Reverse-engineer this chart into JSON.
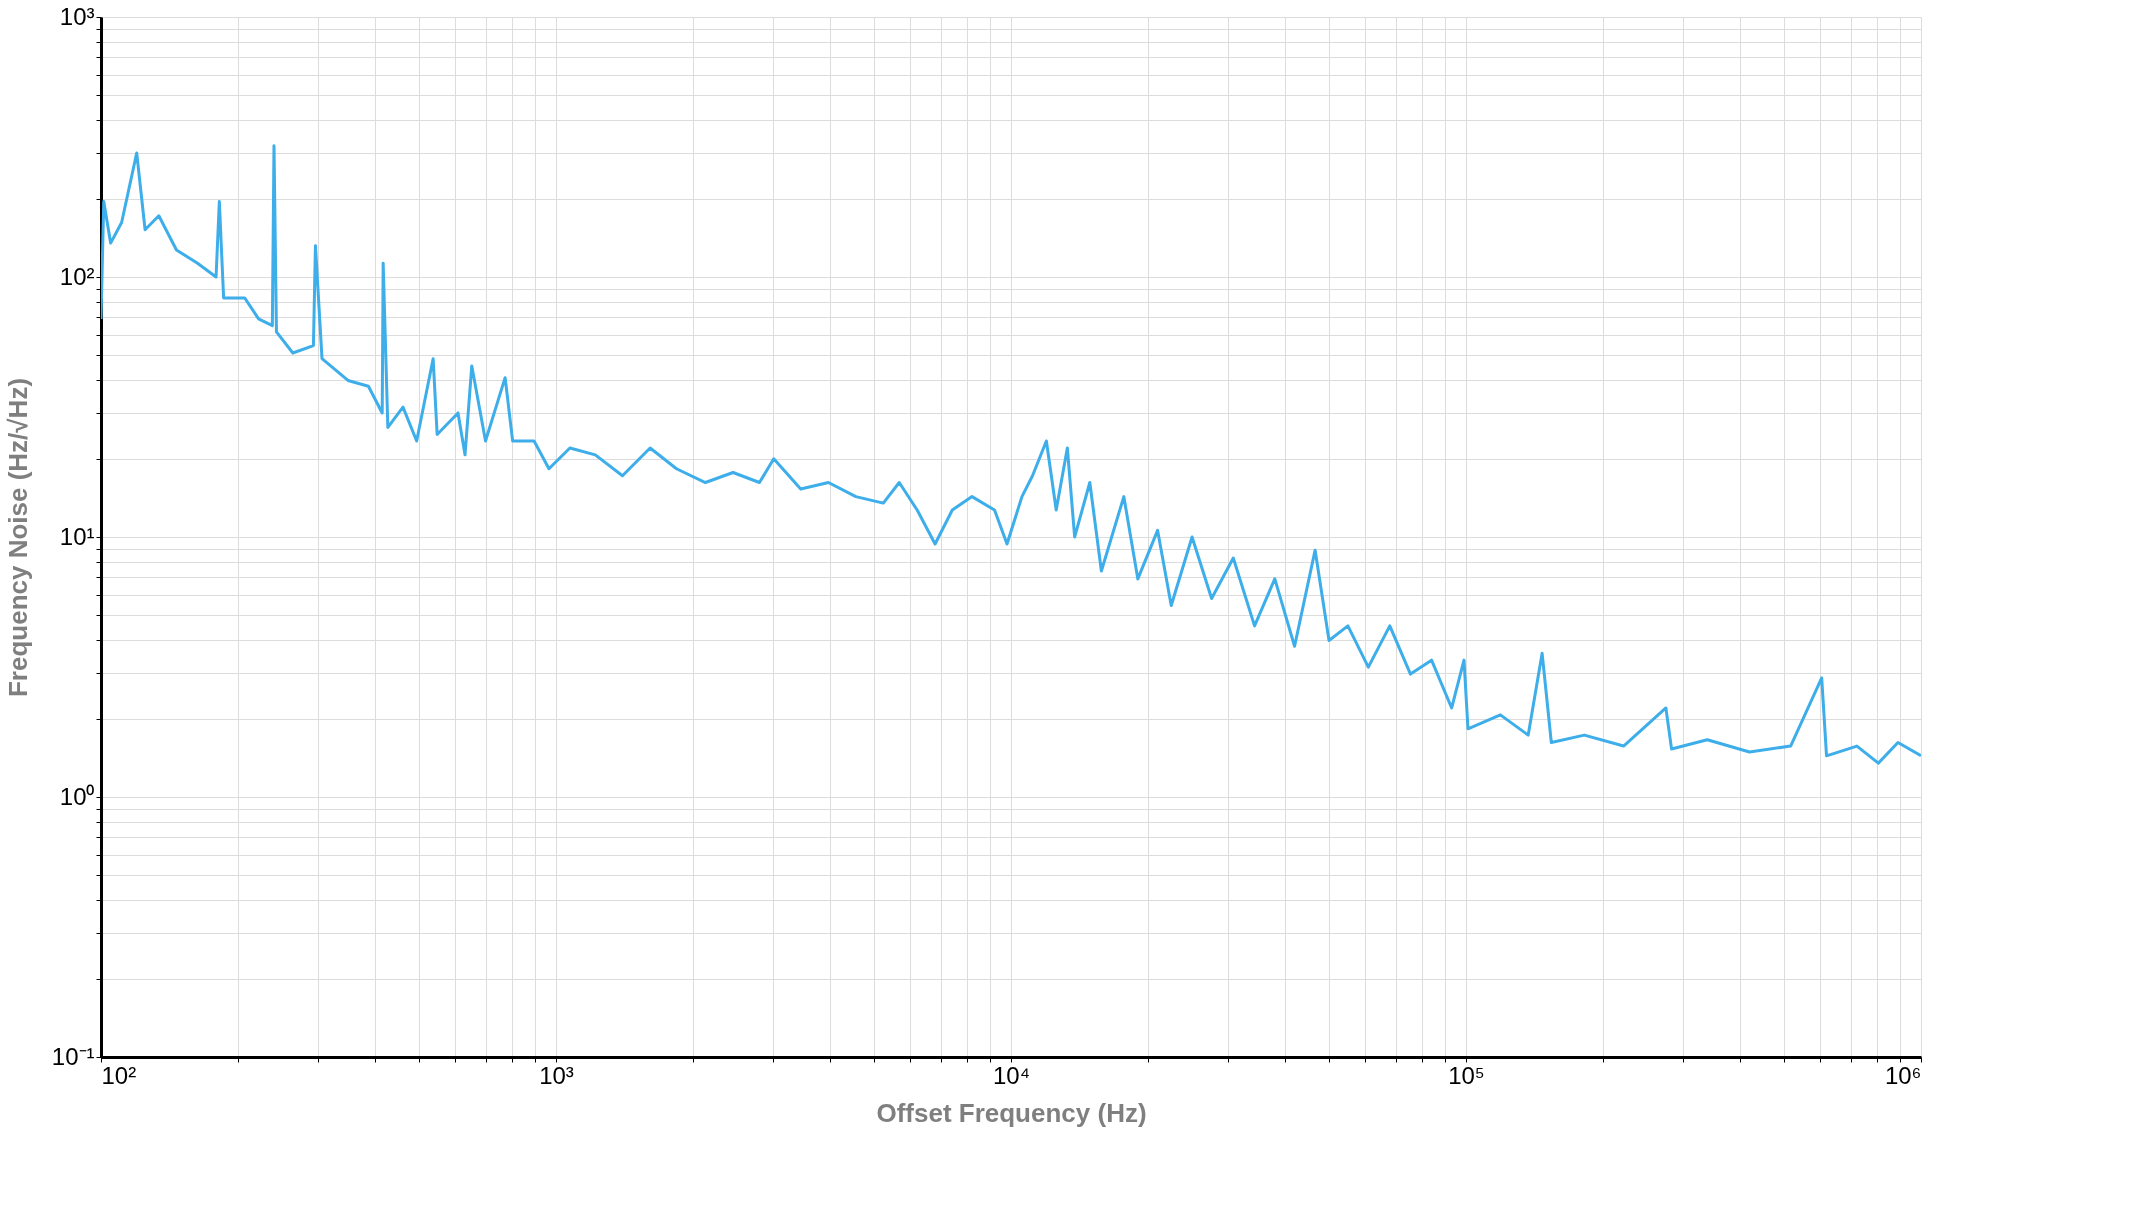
{
  "chart_data": {
    "type": "line",
    "xlabel": "Offset Frequency (Hz)",
    "ylabel": "Frequency Noise  (Hz/√Hz)",
    "log": "xy",
    "grid": true,
    "marker": "none",
    "line_style": "solid",
    "xlim": [
      100,
      1000000
    ],
    "ylim": [
      0.1,
      1000
    ],
    "xticks": [
      {
        "value": 100,
        "label": "10²"
      },
      {
        "value": 200,
        "label": null
      },
      {
        "value": 300,
        "label": null
      },
      {
        "value": 400,
        "label": null
      },
      {
        "value": 500,
        "label": null
      },
      {
        "value": 600,
        "label": null
      },
      {
        "value": 700,
        "label": null
      },
      {
        "value": 800,
        "label": null
      },
      {
        "value": 900,
        "label": null
      },
      {
        "value": 1000,
        "label": "10³"
      },
      {
        "value": 2000,
        "label": null
      },
      {
        "value": 3000,
        "label": null
      },
      {
        "value": 4000,
        "label": null
      },
      {
        "value": 5000,
        "label": null
      },
      {
        "value": 6000,
        "label": null
      },
      {
        "value": 7000,
        "label": null
      },
      {
        "value": 8000,
        "label": null
      },
      {
        "value": 9000,
        "label": null
      },
      {
        "value": 10000,
        "label": "10⁴"
      },
      {
        "value": 20000,
        "label": null
      },
      {
        "value": 30000,
        "label": null
      },
      {
        "value": 40000,
        "label": null
      },
      {
        "value": 50000,
        "label": null
      },
      {
        "value": 60000,
        "label": null
      },
      {
        "value": 70000,
        "label": null
      },
      {
        "value": 80000,
        "label": null
      },
      {
        "value": 90000,
        "label": null
      },
      {
        "value": 100000,
        "label": "10⁵"
      },
      {
        "value": 200000,
        "label": null
      },
      {
        "value": 300000,
        "label": null
      },
      {
        "value": 400000,
        "label": null
      },
      {
        "value": 500000,
        "label": null
      },
      {
        "value": 600000,
        "label": null
      },
      {
        "value": 700000,
        "label": null
      },
      {
        "value": 800000,
        "label": null
      },
      {
        "value": 900000,
        "label": null
      },
      {
        "value": 1000000,
        "label": "10⁶"
      }
    ],
    "yticks": [
      {
        "value": 0.1,
        "label": "10⁻¹"
      },
      {
        "value": 0.2,
        "label": null
      },
      {
        "value": 0.3,
        "label": null
      },
      {
        "value": 0.4,
        "label": null
      },
      {
        "value": 0.5,
        "label": null
      },
      {
        "value": 0.6,
        "label": null
      },
      {
        "value": 0.7,
        "label": null
      },
      {
        "value": 0.8,
        "label": null
      },
      {
        "value": 0.9,
        "label": null
      },
      {
        "value": 1,
        "label": "10⁰"
      },
      {
        "value": 2,
        "label": null
      },
      {
        "value": 3,
        "label": null
      },
      {
        "value": 4,
        "label": null
      },
      {
        "value": 5,
        "label": null
      },
      {
        "value": 6,
        "label": null
      },
      {
        "value": 7,
        "label": null
      },
      {
        "value": 8,
        "label": null
      },
      {
        "value": 9,
        "label": null
      },
      {
        "value": 10,
        "label": "10¹"
      },
      {
        "value": 20,
        "label": null
      },
      {
        "value": 30,
        "label": null
      },
      {
        "value": 40,
        "label": null
      },
      {
        "value": 50,
        "label": null
      },
      {
        "value": 60,
        "label": null
      },
      {
        "value": 70,
        "label": null
      },
      {
        "value": 80,
        "label": null
      },
      {
        "value": 90,
        "label": null
      },
      {
        "value": 100,
        "label": "10²"
      },
      {
        "value": 200,
        "label": null
      },
      {
        "value": 300,
        "label": null
      },
      {
        "value": 400,
        "label": null
      },
      {
        "value": 500,
        "label": null
      },
      {
        "value": 600,
        "label": null
      },
      {
        "value": 700,
        "label": null
      },
      {
        "value": 800,
        "label": null
      },
      {
        "value": 900,
        "label": null
      },
      {
        "value": 1000,
        "label": "10³"
      }
    ],
    "series": [
      {
        "color": "#3daee9",
        "x": [
          100,
          101.4,
          105,
          111,
          119.8,
          125,
          134,
          146.5,
          163,
          179,
          182,
          186,
          207,
          222,
          238,
          240,
          243,
          264,
          293,
          296,
          306,
          349,
          387,
          415,
          417,
          427,
          461,
          494,
          537,
          548,
          609,
          631,
          653,
          700,
          773,
          803,
          895,
          965,
          1073,
          1220,
          1400,
          1610,
          1840,
          2130,
          2450,
          2800,
          3010,
          3450,
          3970,
          4560,
          5240,
          5680,
          6220,
          6810,
          7430,
          8210,
          9200,
          9800,
          10570,
          11150,
          11960,
          12570,
          13300,
          13800,
          14900,
          15800,
          17700,
          19000,
          21000,
          22500,
          25000,
          27600,
          30800,
          34300,
          38000,
          42000,
          46600,
          50000,
          55000,
          61000,
          68000,
          75500,
          84000,
          93000,
          99000,
          101000,
          119000,
          137000,
          147000,
          154000,
          182000,
          222000,
          275000,
          283000,
          339000,
          420000,
          517000,
          605000,
          620000,
          723000,
          806000,
          890000,
          1000000
        ],
        "values": [
          69,
          195,
          135,
          162,
          300,
          152,
          172,
          127,
          113,
          100,
          195,
          83,
          83,
          69,
          65,
          320,
          61.5,
          51,
          54.5,
          132,
          48.5,
          40,
          38,
          30,
          113,
          26.4,
          31.6,
          23.4,
          48.5,
          24.8,
          30,
          20.7,
          45.5,
          23.4,
          41,
          23.4,
          23.4,
          18.3,
          22,
          20.7,
          17.2,
          22,
          18.3,
          16.2,
          17.7,
          16.2,
          20,
          15.3,
          16.2,
          14.3,
          13.5,
          16.2,
          12.7,
          9.4,
          12.7,
          14.3,
          12.7,
          9.4,
          14.3,
          17.2,
          23.4,
          12.7,
          22,
          10,
          16.2,
          7.4,
          14.3,
          6.9,
          10.6,
          5.45,
          10,
          5.8,
          8.3,
          4.55,
          6.9,
          3.8,
          8.9,
          4.0,
          4.55,
          3.16,
          4.55,
          2.97,
          3.36,
          2.2,
          3.36,
          1.83,
          2.07,
          1.73,
          3.57,
          1.62,
          1.73,
          1.57,
          2.2,
          1.53,
          1.66,
          1.49,
          1.57,
          2.87,
          1.44,
          1.57,
          1.35,
          1.62,
          1.44
        ]
      }
    ]
  }
}
